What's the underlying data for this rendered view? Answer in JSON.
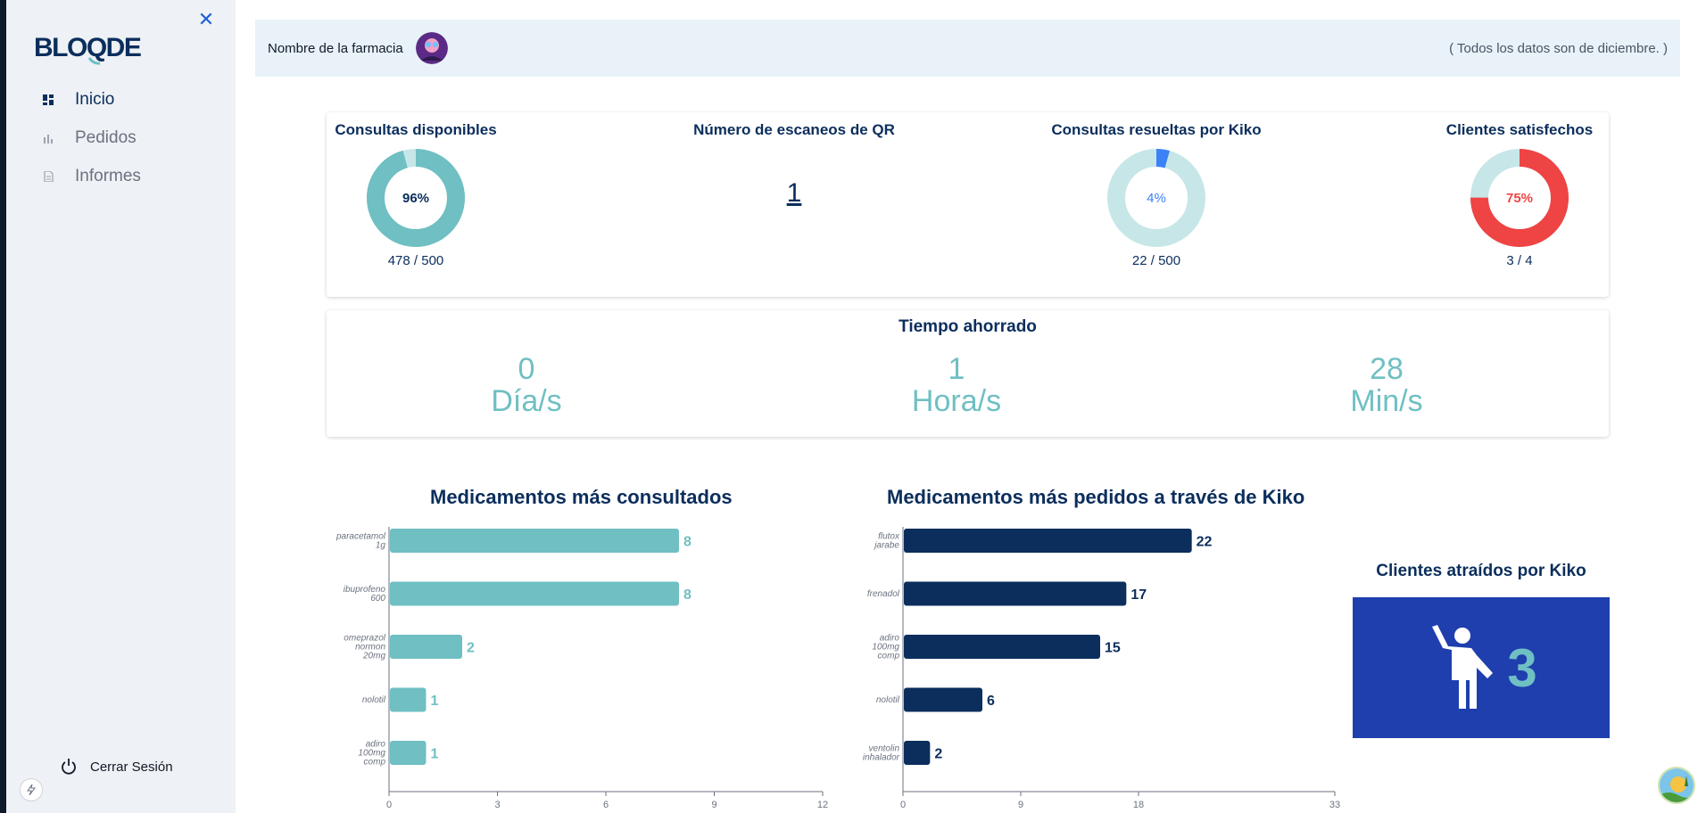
{
  "app": {
    "logo_text": "BLOQDE"
  },
  "sidebar": {
    "items": [
      {
        "label": "Inicio",
        "icon": "dashboard-icon"
      },
      {
        "label": "Pedidos",
        "icon": "bar-chart-icon"
      },
      {
        "label": "Informes",
        "icon": "document-icon"
      }
    ],
    "logout_label": "Cerrar Sesión"
  },
  "header": {
    "pharmacy_name": "Nombre de la farmacia",
    "note": "( Todos los datos son de diciembre. )"
  },
  "kpis": {
    "consultas": {
      "title": "Consultas disponibles",
      "percent_label": "96%",
      "fraction": "478 / 500",
      "value": 0.956
    },
    "qr": {
      "title": "Número de escaneos de QR",
      "value": "1"
    },
    "resueltas": {
      "title": "Consultas resueltas por Kiko",
      "percent_label": "4%",
      "fraction": "22 / 500",
      "value": 0.044
    },
    "satisfechos": {
      "title": "Clientes satisfechos",
      "percent_label": "75%",
      "fraction": "3 / 4",
      "value": 0.75
    }
  },
  "time_saved": {
    "title": "Tiempo ahorrado",
    "days": {
      "value": "0",
      "unit": "Día/s"
    },
    "hours": {
      "value": "1",
      "unit": "Hora/s"
    },
    "mins": {
      "value": "28",
      "unit": "Min/s"
    }
  },
  "clients_attracted": {
    "title": "Clientes atraídos por Kiko",
    "value": "3"
  },
  "colors": {
    "teal": "#6fbfc3",
    "navy": "#0b2e5c",
    "red": "#ef4444",
    "blue": "#3b82f6",
    "light_teal": "#c7e6e8",
    "client_blue": "#1f3fae"
  },
  "chart_data": [
    {
      "type": "bar",
      "orientation": "horizontal",
      "title": "Medicamentos más consultados",
      "categories": [
        [
          "paracetamol",
          "1g"
        ],
        [
          "ibuprofeno",
          "600"
        ],
        [
          "omeprazol",
          "normon",
          "20mg"
        ],
        [
          "nolotil"
        ],
        [
          "adiro",
          "100mg",
          "comp"
        ]
      ],
      "values": [
        8,
        8,
        2,
        1,
        1
      ],
      "xlim": [
        0,
        12
      ],
      "xticks": [
        0,
        3,
        6,
        9,
        12
      ],
      "color": "#6fbfc3"
    },
    {
      "type": "bar",
      "orientation": "horizontal",
      "title": "Medicamentos más pedidos a través de Kiko",
      "categories": [
        [
          "flutox",
          "jarabe"
        ],
        [
          "frenadol"
        ],
        [
          "adiro",
          "100mg",
          "comp"
        ],
        [
          "nolotil"
        ],
        [
          "ventolin",
          "inhalador"
        ]
      ],
      "values": [
        22,
        17,
        15,
        6,
        2
      ],
      "xlim": [
        0,
        33
      ],
      "xticks": [
        0,
        9,
        18,
        33
      ],
      "color": "#0b2e5c"
    }
  ]
}
